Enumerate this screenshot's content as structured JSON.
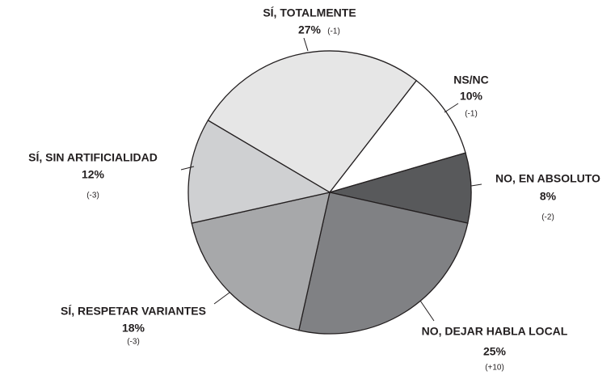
{
  "chart_data": {
    "type": "pie",
    "categories": [
      "SÍ, TOTALMENTE",
      "NS/NC",
      "NO, EN ABSOLUTO",
      "NO, DEJAR HABLA LOCAL",
      "SÍ, RESPETAR VARIANTES",
      "SÍ, SIN ARTIFICIALIDAD"
    ],
    "values": [
      27,
      10,
      8,
      25,
      18,
      12
    ],
    "value_labels": [
      "27%",
      "10%",
      "8%",
      "25%",
      "18%",
      "12%"
    ],
    "changes": [
      -1,
      -1,
      -2,
      10,
      -3,
      -3
    ],
    "change_labels": [
      "(-1)",
      "(-1)",
      "(-2)",
      "(+10)",
      "(-3)",
      "(-3)"
    ],
    "colors": [
      "#e6e6e6",
      "#ffffff",
      "#58595b",
      "#808184",
      "#a7a8aa",
      "#cfd0d2"
    ]
  }
}
